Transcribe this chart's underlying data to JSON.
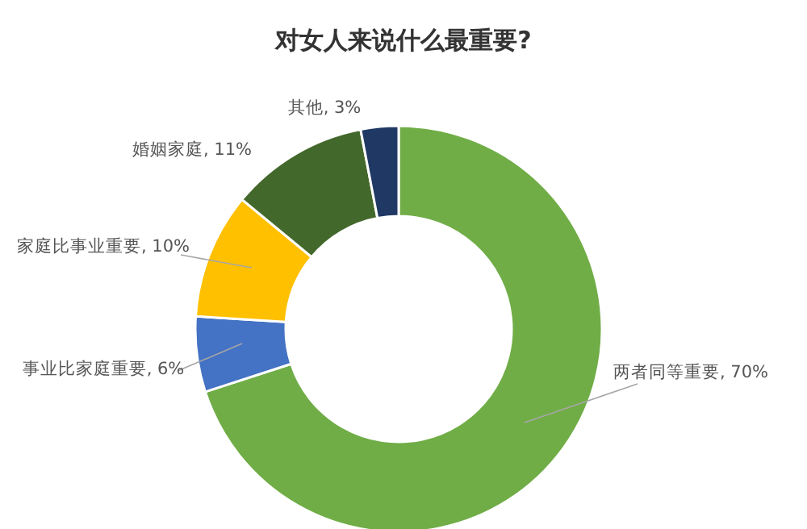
{
  "chart_data": {
    "type": "donut",
    "title": "对女人来说什么最重要?",
    "categories": [
      "两者同等重要",
      "事业比家庭重要",
      "家庭比事业重要",
      "婚姻家庭",
      "其他"
    ],
    "values": [
      70,
      6,
      10,
      11,
      3
    ],
    "value_labels": [
      "70%",
      "6%",
      "10%",
      "11%",
      "3%"
    ],
    "colors": [
      "#70ad47",
      "#4472c4",
      "#ffc000",
      "#43682b",
      "#203864"
    ]
  }
}
